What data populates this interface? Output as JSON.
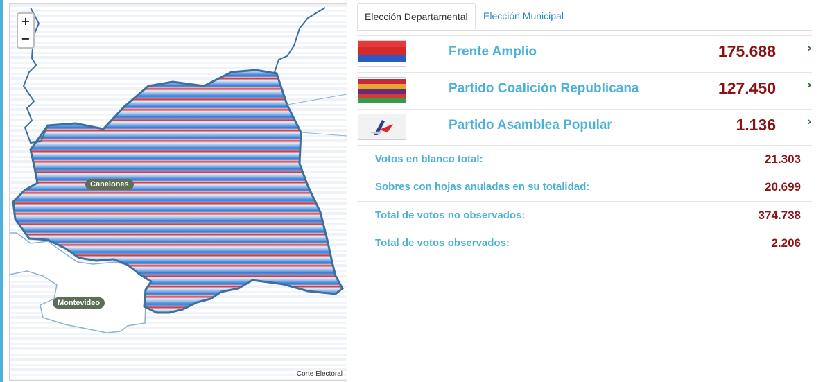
{
  "map": {
    "zoom_in_label": "+",
    "zoom_out_label": "−",
    "labels": {
      "canelones": "Canelones",
      "montevideo": "Montevideo"
    },
    "attribution": "Corte Electoral"
  },
  "tabs": [
    {
      "label": "Elección Departamental",
      "active": true
    },
    {
      "label": "Elección Municipal",
      "active": false
    }
  ],
  "parties": [
    {
      "name": "Frente Amplio",
      "votes": "175.688",
      "flag": "frente-amplio-flag"
    },
    {
      "name": "Partido Coalición Republicana",
      "votes": "127.450",
      "flag": "coalicion-republicana-flag"
    },
    {
      "name": "Partido Asamblea Popular",
      "votes": "1.136",
      "flag": "asamblea-popular-logo"
    }
  ],
  "stats": [
    {
      "label": "Votos en blanco total:",
      "value": "21.303"
    },
    {
      "label": "Sobres con hojas anuladas en su totalidad:",
      "value": "20.699"
    },
    {
      "label": "Total de votos no observados:",
      "value": "374.738"
    },
    {
      "label": "Total de votos observados:",
      "value": "2.206"
    }
  ],
  "colors": {
    "accent": "#4cb1d8",
    "value_red": "#8b1214",
    "region_red": "#c6323a",
    "region_blue": "#3a7bd5",
    "border": "#3b6fa0"
  }
}
